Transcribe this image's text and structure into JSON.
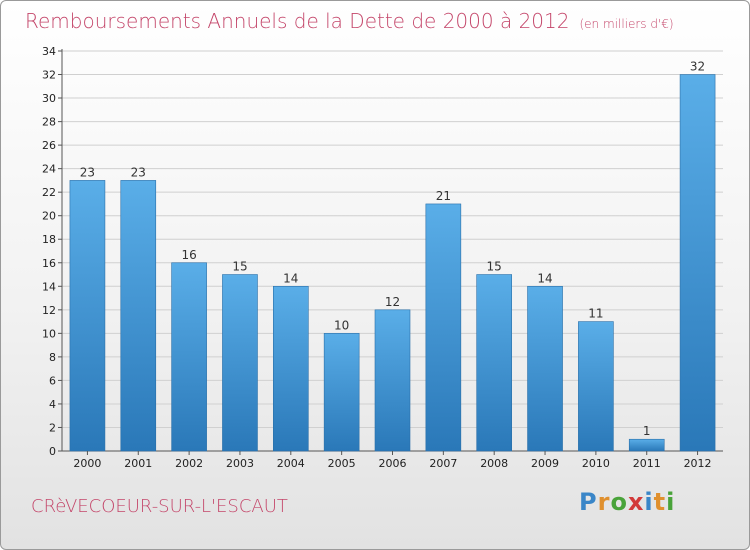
{
  "title": "Remboursements Annuels de la Dette de 2000 à 2012",
  "unit": "(en milliers d'€)",
  "commune": "CRèVECOEUR-SUR-L'ESCAUT",
  "logo": {
    "text": "Proxiti",
    "colors": [
      "#3a86c8",
      "#e0902e",
      "#49a33a",
      "#d23a3a",
      "#3a86c8",
      "#e0902e",
      "#49a33a"
    ]
  },
  "colors": {
    "bar_top": "#5aaee8",
    "bar_bottom": "#2a78b8",
    "title": "#c4466a",
    "grid": "#d0d0d0"
  },
  "chart_data": {
    "type": "bar",
    "title": "Remboursements Annuels de la Dette de 2000 à 2012",
    "categories": [
      "2000",
      "2001",
      "2002",
      "2003",
      "2004",
      "2005",
      "2006",
      "2007",
      "2008",
      "2009",
      "2010",
      "2011",
      "2012"
    ],
    "values": [
      23,
      23,
      16,
      15,
      14,
      10,
      12,
      21,
      15,
      14,
      11,
      1,
      32
    ],
    "ylim": [
      0,
      34
    ],
    "yticks": [
      0,
      2,
      4,
      6,
      8,
      10,
      12,
      14,
      16,
      18,
      20,
      22,
      24,
      26,
      28,
      30,
      32,
      34
    ],
    "grid": true,
    "xlabel": "",
    "ylabel": ""
  }
}
